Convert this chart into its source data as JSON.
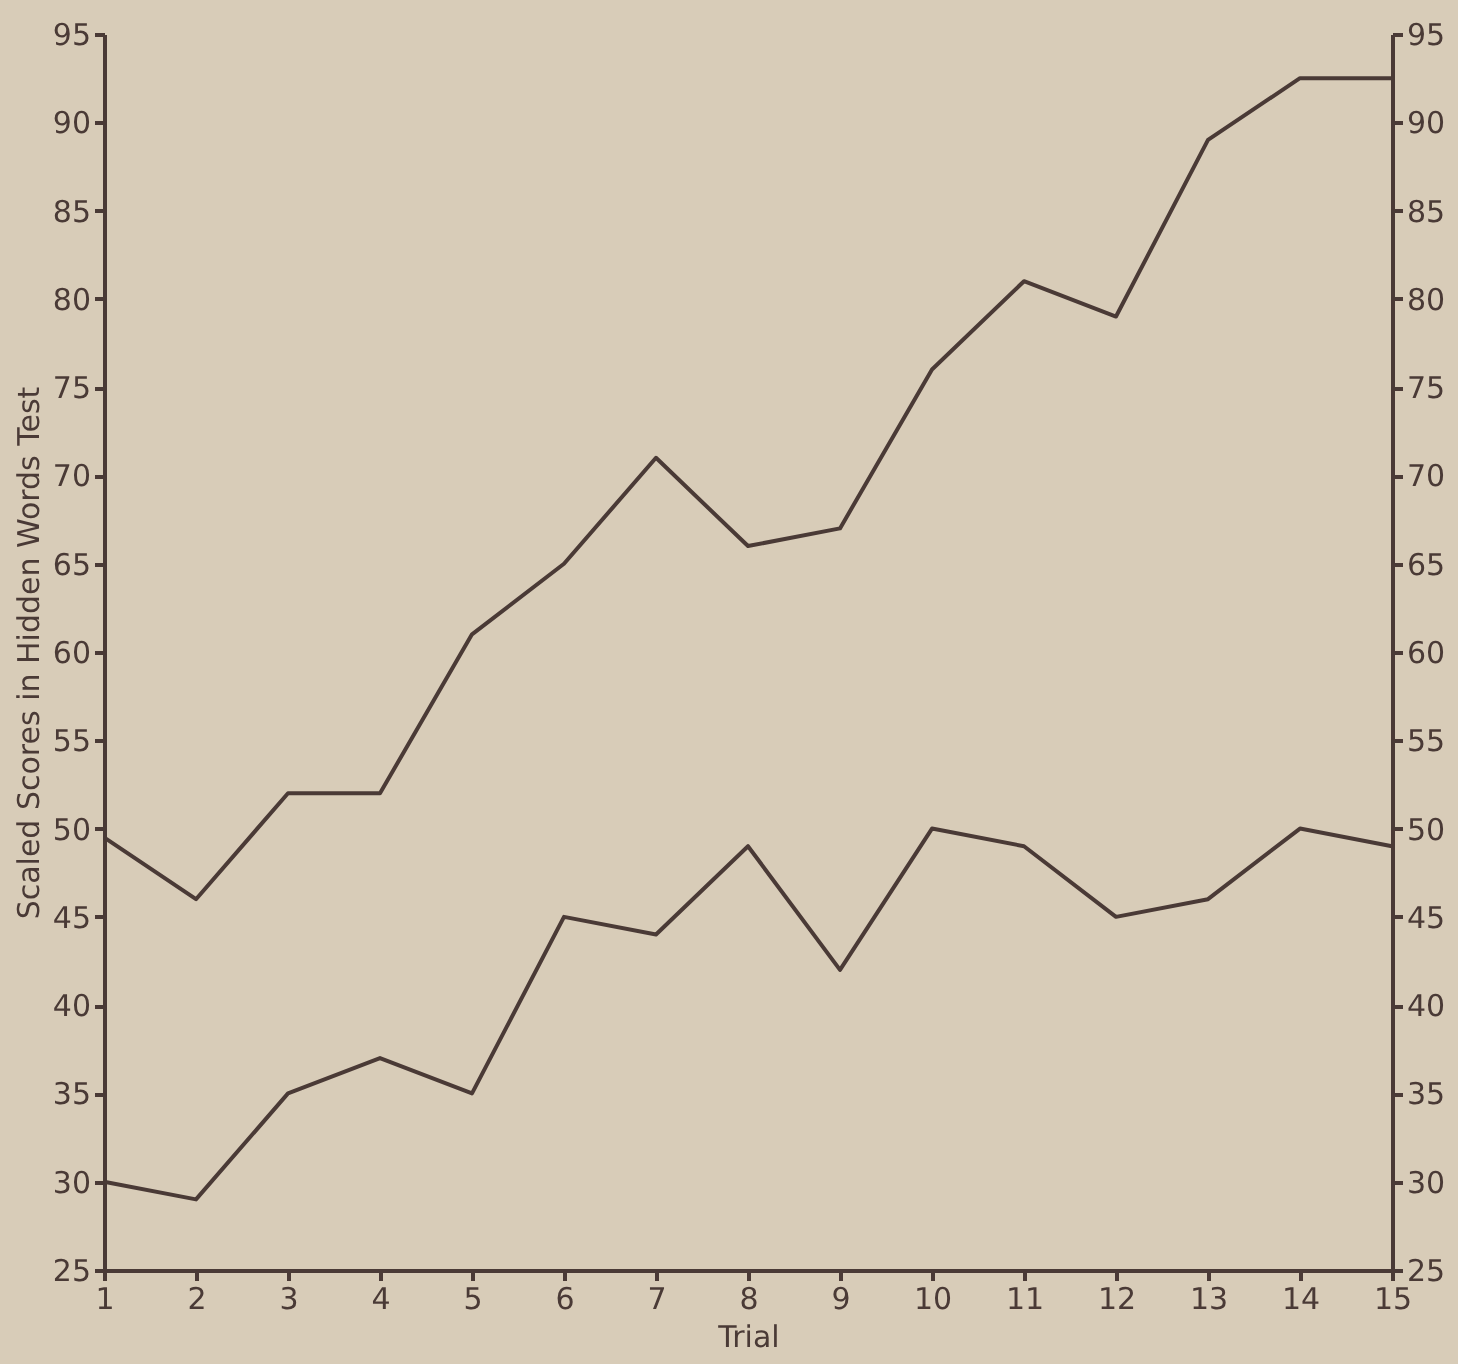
{
  "chart_data": {
    "type": "line",
    "xlabel": "Trial",
    "ylabel": "Scaled Scores in Hidden Words Test",
    "x": [
      1,
      2,
      3,
      4,
      5,
      6,
      7,
      8,
      9,
      10,
      11,
      12,
      13,
      14,
      15
    ],
    "series": [
      {
        "color": "#4a3a36",
        "values": [
          49.5,
          46,
          52,
          52,
          61,
          65,
          71,
          66,
          67,
          76,
          81,
          79,
          89,
          92.5,
          92.5
        ]
      },
      {
        "color": "#4a3a36",
        "values": [
          30,
          29,
          35,
          37,
          35,
          45,
          44,
          49,
          42,
          50,
          49,
          45,
          46,
          50,
          49
        ]
      }
    ],
    "xlim": [
      1,
      15
    ],
    "xticks": [
      1,
      2,
      3,
      4,
      5,
      6,
      7,
      8,
      9,
      10,
      11,
      12,
      13,
      14,
      15
    ],
    "ylim": [
      25,
      95
    ],
    "yticks": [
      25,
      30,
      35,
      40,
      45,
      50,
      55,
      60,
      65,
      70,
      75,
      80,
      85,
      90,
      95
    ],
    "y2lim": [
      25,
      95
    ],
    "y2ticks": [
      25,
      30,
      35,
      40,
      45,
      50,
      55,
      60,
      65,
      70,
      75,
      80,
      85,
      90,
      95
    ],
    "grid": false,
    "marker": "none",
    "line_style": "solid"
  }
}
